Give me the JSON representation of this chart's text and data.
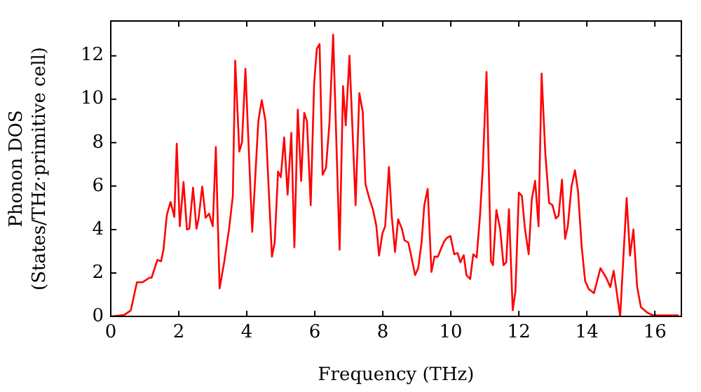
{
  "chart_data": {
    "type": "line",
    "xlabel": "Frequency (THz)",
    "ylabel": "Phonon DOS\n(States/THz·primitive cell)",
    "xlim": [
      0,
      16.78
    ],
    "ylim": [
      0,
      13.6
    ],
    "xticks": [
      0,
      2,
      4,
      6,
      8,
      10,
      12,
      14,
      16
    ],
    "yticks": [
      0,
      2,
      4,
      6,
      8,
      10,
      12
    ],
    "grid": false,
    "legend": false,
    "marker": "none",
    "line_style": "solid",
    "series": [
      {
        "color": "#ff0000",
        "x": [
          0,
          0.39,
          0.59,
          0.77,
          0.93,
          1.14,
          1.2,
          1.37,
          1.48,
          1.55,
          1.65,
          1.76,
          1.87,
          1.94,
          2.03,
          2.14,
          2.24,
          2.31,
          2.42,
          2.52,
          2.58,
          2.69,
          2.79,
          2.89,
          3.0,
          3.09,
          3.2,
          3.34,
          3.48,
          3.59,
          3.66,
          3.78,
          3.86,
          3.96,
          4.16,
          4.34,
          4.44,
          4.55,
          4.74,
          4.82,
          4.92,
          5.0,
          5.1,
          5.2,
          5.31,
          5.4,
          5.5,
          5.6,
          5.69,
          5.77,
          5.88,
          5.98,
          6.06,
          6.14,
          6.23,
          6.33,
          6.43,
          6.54,
          6.73,
          6.83,
          6.91,
          7.02,
          7.2,
          7.31,
          7.41,
          7.49,
          7.6,
          7.71,
          7.81,
          7.89,
          7.99,
          8.07,
          8.18,
          8.26,
          8.36,
          8.45,
          8.56,
          8.64,
          8.75,
          8.84,
          8.95,
          9.04,
          9.14,
          9.22,
          9.32,
          9.43,
          9.52,
          9.62,
          9.7,
          9.8,
          9.88,
          9.99,
          10.1,
          10.2,
          10.28,
          10.38,
          10.46,
          10.57,
          10.66,
          10.76,
          10.86,
          10.94,
          11.05,
          11.18,
          11.24,
          11.34,
          11.45,
          11.55,
          11.63,
          11.71,
          11.82,
          11.9,
          12.0,
          12.09,
          12.18,
          12.29,
          12.38,
          12.48,
          12.58,
          12.67,
          12.78,
          12.89,
          12.99,
          13.09,
          13.17,
          13.27,
          13.36,
          13.44,
          13.55,
          13.65,
          13.74,
          13.85,
          13.95,
          14.06,
          14.21,
          14.4,
          14.57,
          14.69,
          14.79,
          14.98,
          15.17,
          15.27,
          15.37,
          15.48,
          15.59,
          15.78,
          15.95,
          16.7
        ],
        "values": [
          0,
          0.06,
          0.28,
          1.57,
          1.57,
          1.78,
          1.78,
          2.6,
          2.54,
          3.07,
          4.68,
          5.27,
          4.58,
          7.95,
          4.15,
          6.19,
          4.0,
          4.04,
          5.93,
          4.04,
          4.47,
          5.98,
          4.54,
          4.73,
          4.15,
          7.8,
          1.29,
          2.54,
          4.04,
          5.55,
          11.78,
          7.59,
          8.02,
          11.4,
          3.89,
          8.99,
          9.96,
          8.99,
          2.75,
          3.4,
          6.67,
          6.41,
          8.24,
          5.6,
          8.45,
          3.18,
          9.52,
          6.24,
          9.37,
          8.99,
          5.12,
          10.7,
          12.32,
          12.54,
          6.52,
          6.84,
          8.88,
          12.97,
          3.07,
          10.6,
          8.8,
          12.0,
          5.12,
          10.28,
          9.42,
          6.09,
          5.45,
          4.92,
          4.17,
          2.8,
          3.83,
          4.15,
          6.88,
          4.68,
          2.97,
          4.47,
          4.04,
          3.5,
          3.4,
          2.75,
          1.9,
          2.22,
          3.4,
          5.12,
          5.87,
          2.05,
          2.75,
          2.75,
          3.07,
          3.44,
          3.61,
          3.7,
          2.86,
          2.92,
          2.49,
          2.82,
          1.9,
          1.72,
          2.86,
          2.71,
          4.68,
          6.84,
          11.25,
          2.54,
          2.36,
          4.9,
          4.04,
          2.36,
          2.49,
          4.94,
          0.28,
          1.14,
          5.7,
          5.55,
          4.04,
          2.86,
          5.38,
          6.24,
          4.15,
          11.18,
          7.48,
          5.23,
          5.12,
          4.51,
          4.64,
          6.3,
          3.57,
          4.15,
          5.98,
          6.73,
          5.77,
          3.18,
          1.63,
          1.25,
          1.07,
          2.22,
          1.78,
          1.35,
          2.1,
          0,
          5.45,
          2.8,
          4.0,
          1.35,
          0.43,
          0.17,
          0.05,
          0.05
        ]
      }
    ]
  }
}
